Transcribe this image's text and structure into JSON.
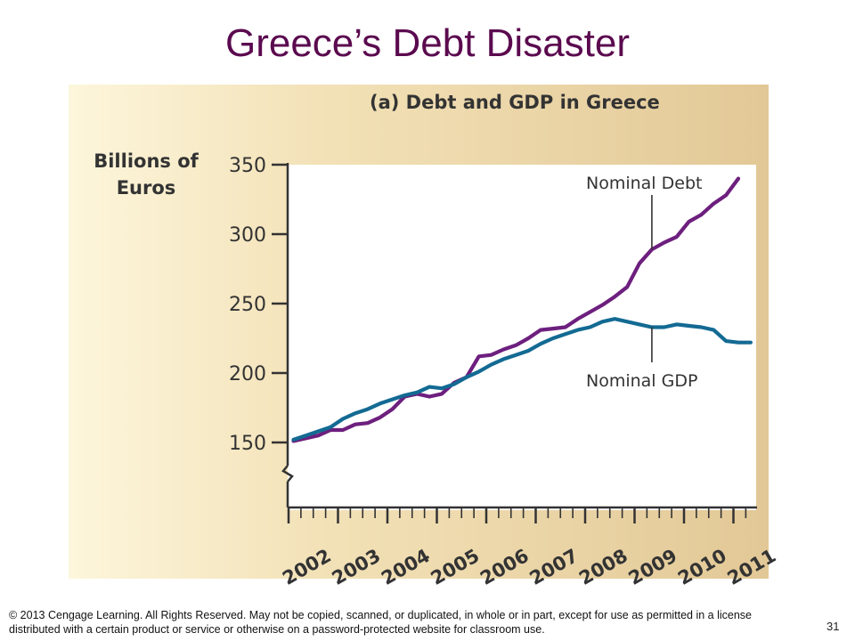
{
  "slide": {
    "title": "Greece’s Debt Disaster",
    "copyright": "© 2013 Cengage Learning. All Rights Reserved. May not be copied, scanned, or duplicated, in whole or in part, except for use as permitted in a license distributed with a certain product or service or otherwise on a password-protected website for classroom use.",
    "page_number": "31"
  },
  "colors": {
    "title": "#5b0a4f",
    "debt_line": "#6d1f7e",
    "gdp_line": "#136a93",
    "plot_background": "#ffffff",
    "panel_background": "#f3e2b8"
  },
  "chart_data": {
    "type": "line",
    "title": "(a) Debt and GDP in Greece",
    "ylabel": "Billions of Euros",
    "xlabel": "",
    "ylim": [
      150,
      350
    ],
    "ylim_note": "broken axis below 150",
    "yticks": [
      "350",
      "300",
      "250",
      "200",
      "150"
    ],
    "ytick_values": [
      350,
      300,
      250,
      200,
      150
    ],
    "xticks": [
      "2002",
      "2003",
      "2004",
      "2005",
      "2006",
      "2007",
      "2008",
      "2009",
      "2010",
      "2011"
    ],
    "xtick_values": [
      2002,
      2003,
      2004,
      2005,
      2006,
      2007,
      2008,
      2009,
      2010,
      2011
    ],
    "xlim": [
      2002,
      2011.5
    ],
    "grid": false,
    "series": [
      {
        "name": "Nominal Debt",
        "color": "#6d1f7e",
        "x": [
          2002.1,
          2002.35,
          2002.6,
          2002.85,
          2003.1,
          2003.35,
          2003.6,
          2003.85,
          2004.1,
          2004.35,
          2004.6,
          2004.85,
          2005.1,
          2005.35,
          2005.6,
          2005.85,
          2006.1,
          2006.35,
          2006.6,
          2006.85,
          2007.1,
          2007.35,
          2007.6,
          2007.85,
          2008.1,
          2008.35,
          2008.6,
          2008.85,
          2009.1,
          2009.35,
          2009.6,
          2009.85,
          2010.1,
          2010.35,
          2010.6,
          2010.85,
          2011.1
        ],
        "y": [
          151,
          153,
          155,
          159,
          159,
          163,
          164,
          168,
          174,
          183,
          185,
          183,
          185,
          193,
          197,
          212,
          213,
          217,
          220,
          225,
          231,
          232,
          233,
          239,
          244,
          249,
          255,
          262,
          279,
          289,
          294,
          298,
          309,
          314,
          322,
          328,
          340
        ]
      },
      {
        "name": "Nominal GDP",
        "color": "#136a93",
        "x": [
          2002.1,
          2002.35,
          2002.6,
          2002.85,
          2003.1,
          2003.35,
          2003.6,
          2003.85,
          2004.1,
          2004.35,
          2004.6,
          2004.85,
          2005.1,
          2005.35,
          2005.6,
          2005.85,
          2006.1,
          2006.35,
          2006.6,
          2006.85,
          2007.1,
          2007.35,
          2007.6,
          2007.85,
          2008.1,
          2008.35,
          2008.6,
          2008.85,
          2009.1,
          2009.35,
          2009.6,
          2009.85,
          2010.1,
          2010.35,
          2010.6,
          2010.85,
          2011.1,
          2011.35
        ],
        "y": [
          152,
          155,
          158,
          161,
          167,
          171,
          174,
          178,
          181,
          184,
          186,
          190,
          189,
          192,
          197,
          201,
          206,
          210,
          213,
          216,
          221,
          225,
          228,
          231,
          233,
          237,
          239,
          237,
          235,
          233,
          233,
          235,
          234,
          233,
          231,
          223,
          222,
          222
        ]
      }
    ],
    "annotations": [
      {
        "text": "Nominal Debt",
        "points_to_x": 2009.35,
        "points_to_y": 289
      },
      {
        "text": "Nominal GDP",
        "points_to_x": 2009.35,
        "points_to_y": 233
      }
    ]
  }
}
